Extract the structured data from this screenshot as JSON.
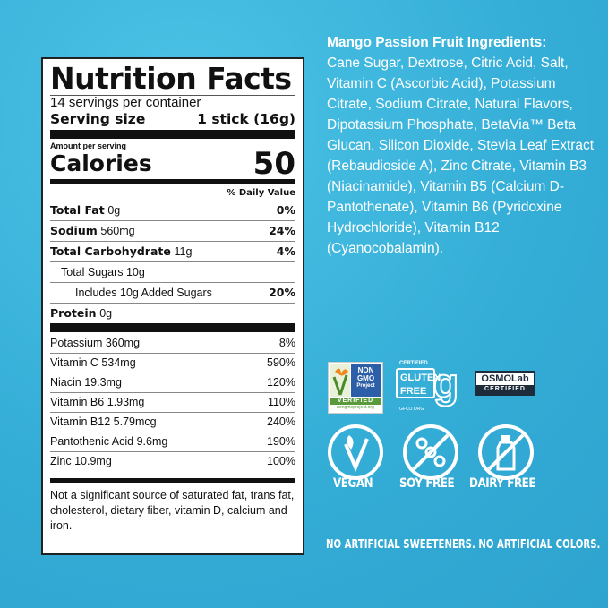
{
  "label": {
    "title": "Nutrition Facts",
    "servings": "14 servings per container",
    "serving_size_label": "Serving size",
    "serving_size_value": "1 stick (16g)",
    "amount_per_serving": "Amount per serving",
    "calories_label": "Calories",
    "calories_value": "50",
    "daily_value_header": "% Daily Value",
    "macros": [
      {
        "name": "Total Fat",
        "amount": "0g",
        "dv": "0%"
      },
      {
        "name": "Sodium",
        "amount": "560mg",
        "dv": "24%"
      },
      {
        "name": "Total Carbohydrate",
        "amount": "11g",
        "dv": "4%"
      },
      {
        "name": "",
        "amount": "Total Sugars 10g",
        "dv": ""
      },
      {
        "name": "",
        "amount": "Includes 10g Added Sugars",
        "dv": "20%"
      },
      {
        "name": "Protein",
        "amount": "0g",
        "dv": ""
      }
    ],
    "micros": [
      {
        "name": "Potassium 360mg",
        "dv": "8%"
      },
      {
        "name": "Vitamin C 534mg",
        "dv": "590%"
      },
      {
        "name": "Niacin 19.3mg",
        "dv": "120%"
      },
      {
        "name": "Vitamin B6 1.93mg",
        "dv": "110%"
      },
      {
        "name": "Vitamin B12 5.79mcg",
        "dv": "240%"
      },
      {
        "name": "Pantothenic Acid 9.6mg",
        "dv": "190%"
      },
      {
        "name": "Zinc 10.9mg",
        "dv": "100%"
      }
    ],
    "footnote": "Not a significant source of saturated fat, trans fat, cholesterol, dietary fiber, vitamin D, calcium and iron."
  },
  "ingredients": {
    "heading": "Mango Passion Fruit Ingredients:",
    "text": "Cane Sugar, Dextrose, Citric Acid, Salt, Vitamin C (Ascorbic Acid), Potassium Citrate, Sodium Citrate, Natural Flavors, Dipotassium Phosphate, BetaVia™ Beta Glucan, Silicon Dioxide, Stevia Leaf Extract (Rebaudioside A), Zinc Citrate, Vitamin B3 (Niacinamide), Vitamin B5 (Calcium D-Pantothenate), Vitamin B6 (Pyridoxine Hydrochloride), Vitamin B12 (Cyanocobalamin)."
  },
  "badges": {
    "nongmo": {
      "line1": "NON",
      "line2": "GMO",
      "line3": "Project",
      "verified": "VERIFIED",
      "url": "nongmoproject.org"
    },
    "gluten": {
      "certified": "CERTIFIED",
      "line1": "GLUTEN",
      "line2": "FREE",
      "url": "GFCO.ORG"
    },
    "osmo": {
      "name": "OSMOLab",
      "certified": "CERTIFIED"
    }
  },
  "icons": [
    {
      "label": "VEGAN",
      "icon": "leaf-v-icon"
    },
    {
      "label": "SOY FREE",
      "icon": "no-soy-icon"
    },
    {
      "label": "DAIRY FREE",
      "icon": "no-dairy-icon"
    }
  ],
  "tagline": "NO ARTIFICIAL SWEETENERS. NO ARTIFICIAL COLORS.",
  "colors": {
    "background": "#38b2db",
    "text": "#ffffff",
    "label_bg": "#ffffff"
  }
}
